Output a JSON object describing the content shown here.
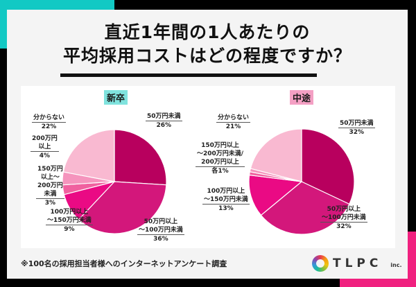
{
  "title_line1": "直近1年間の1人あたりの",
  "title_line2": "平均採用コストはどの程度ですか？",
  "footnote": "※100名の採用担当者様へのインターネットアンケート調査",
  "logo": {
    "name": "TLPC",
    "suffix": "inc."
  },
  "colors": {
    "teal": "#12c9c4",
    "pink": "#f0217f",
    "tag_new": "#80e3de",
    "tag_mid": "#f4a0c4"
  },
  "chart_data": [
    {
      "type": "pie",
      "title": "新卒",
      "categories": [
        "50万円未満",
        "50万円以上～100万円未満",
        "100万円以上～150万円未満",
        "150万円以上～200万円未満",
        "200万円以上",
        "分からない"
      ],
      "values": [
        26,
        36,
        9,
        3,
        4,
        22
      ],
      "colors": [
        "#b8005e",
        "#d3177b",
        "#ea0a84",
        "#f0609f",
        "#f594bd",
        "#f9b9d1"
      ],
      "labels": [
        "50万円未満",
        "50万円以上\n～100万円未満",
        "100万円以上\n～150万円未満",
        "150万円\n以上～\n200万円\n未満",
        "200万円\n以上",
        "分からない"
      ],
      "pct_labels": [
        "26%",
        "36%",
        "9%",
        "3%",
        "4%",
        "22%"
      ]
    },
    {
      "type": "pie",
      "title": "中途",
      "categories": [
        "50万円未満",
        "50万円以上～100万円未満",
        "100万円以上～150万円未満",
        "150万円以上～200万円未満",
        "200万円以上",
        "分からない"
      ],
      "values": [
        32,
        32,
        13,
        1,
        1,
        21
      ],
      "colors": [
        "#b8005e",
        "#d3177b",
        "#ea0a84",
        "#f0609f",
        "#f594bd",
        "#f9b9d1"
      ],
      "labels": [
        "50万円未満",
        "50万円以上\n～100万円未満",
        "100万円以上\n～150万円未満",
        "150万円以上\n～200万円未満/\n200万円以上",
        "",
        "分からない"
      ],
      "pct_labels": [
        "32%",
        "32%",
        "13%",
        "各1%",
        "",
        "21%"
      ]
    }
  ]
}
